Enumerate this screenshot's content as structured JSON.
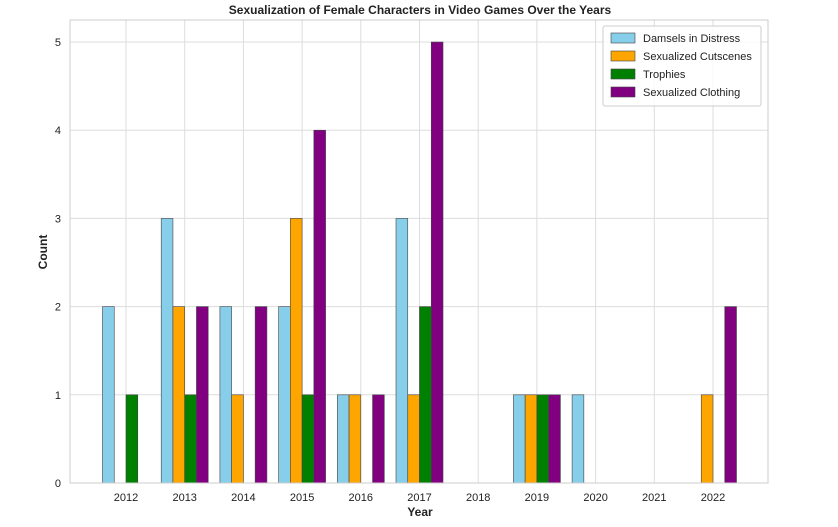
{
  "chart_data": {
    "type": "bar",
    "title": "Sexualization of Female Characters in Video Games Over the Years",
    "xlabel": "Year",
    "ylabel": "Count",
    "categories": [
      "2012",
      "2013",
      "2014",
      "2015",
      "2016",
      "2017",
      "2018",
      "2019",
      "2020",
      "2021",
      "2022"
    ],
    "series": [
      {
        "name": "Damsels in Distress",
        "color": "#87CEEB",
        "values": [
          2,
          3,
          2,
          2,
          1,
          3,
          0,
          1,
          1,
          0,
          0
        ]
      },
      {
        "name": "Sexualized Cutscenes",
        "color": "#FFA500",
        "values": [
          0,
          2,
          1,
          3,
          1,
          1,
          0,
          1,
          0,
          0,
          1
        ]
      },
      {
        "name": "Trophies",
        "color": "#008000",
        "values": [
          1,
          1,
          0,
          1,
          0,
          2,
          0,
          1,
          0,
          0,
          0
        ]
      },
      {
        "name": "Sexualized Clothing",
        "color": "#800080",
        "values": [
          0,
          2,
          2,
          4,
          1,
          5,
          0,
          1,
          0,
          0,
          2
        ]
      }
    ],
    "ylim": [
      0,
      5.25
    ],
    "yticks": [
      0,
      1,
      2,
      3,
      4,
      5
    ],
    "grid": true,
    "legend_position": "top-right"
  }
}
